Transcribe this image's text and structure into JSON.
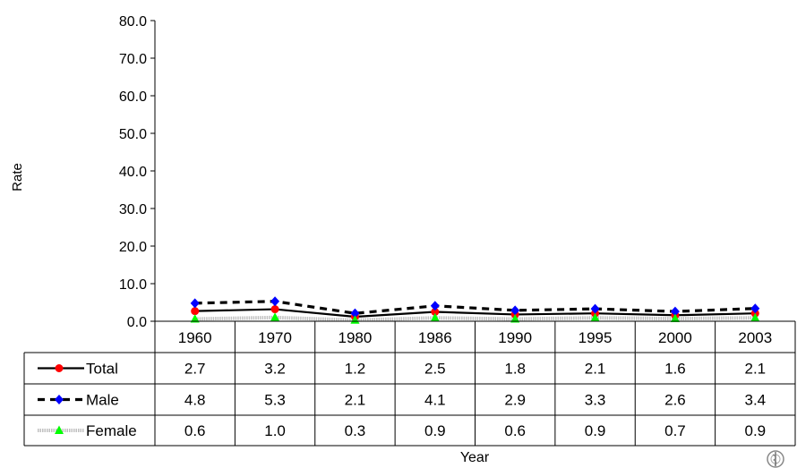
{
  "chart_data": {
    "type": "line",
    "title": "",
    "xlabel": "Year",
    "ylabel": "Rate",
    "categories": [
      "1960",
      "1970",
      "1980",
      "1986",
      "1990",
      "1995",
      "2000",
      "2003"
    ],
    "ylim": [
      0,
      80
    ],
    "yticks": [
      "0.0",
      "10.0",
      "20.0",
      "30.0",
      "40.0",
      "50.0",
      "60.0",
      "70.0",
      "80.0"
    ],
    "grid": false,
    "legend": "data table below the plot",
    "series": [
      {
        "name": "Total",
        "values": [
          2.7,
          3.2,
          1.2,
          2.5,
          1.8,
          2.1,
          1.6,
          2.1
        ],
        "labels": [
          "2.7",
          "3.2",
          "1.2",
          "2.5",
          "1.8",
          "2.1",
          "1.6",
          "2.1"
        ],
        "color": "#000000",
        "marker": "circle",
        "marker_color": "#ff0000",
        "line_style": "solid"
      },
      {
        "name": "Male",
        "values": [
          4.8,
          5.3,
          2.1,
          4.1,
          2.9,
          3.3,
          2.6,
          3.4
        ],
        "labels": [
          "4.8",
          "5.3",
          "2.1",
          "4.1",
          "2.9",
          "3.3",
          "2.6",
          "3.4"
        ],
        "color": "#000000",
        "marker": "diamond",
        "marker_color": "#0000ff",
        "line_style": "dashed"
      },
      {
        "name": "Female",
        "values": [
          0.6,
          1.0,
          0.3,
          0.9,
          0.6,
          0.9,
          0.7,
          0.9
        ],
        "labels": [
          "0.6",
          "1.0",
          "0.3",
          "0.9",
          "0.6",
          "0.9",
          "0.7",
          "0.9"
        ],
        "color": "#c0c0c0",
        "marker": "triangle",
        "marker_color": "#00ff00",
        "line_style": "dotted"
      }
    ]
  },
  "logo_icon": "who-emblem-icon"
}
